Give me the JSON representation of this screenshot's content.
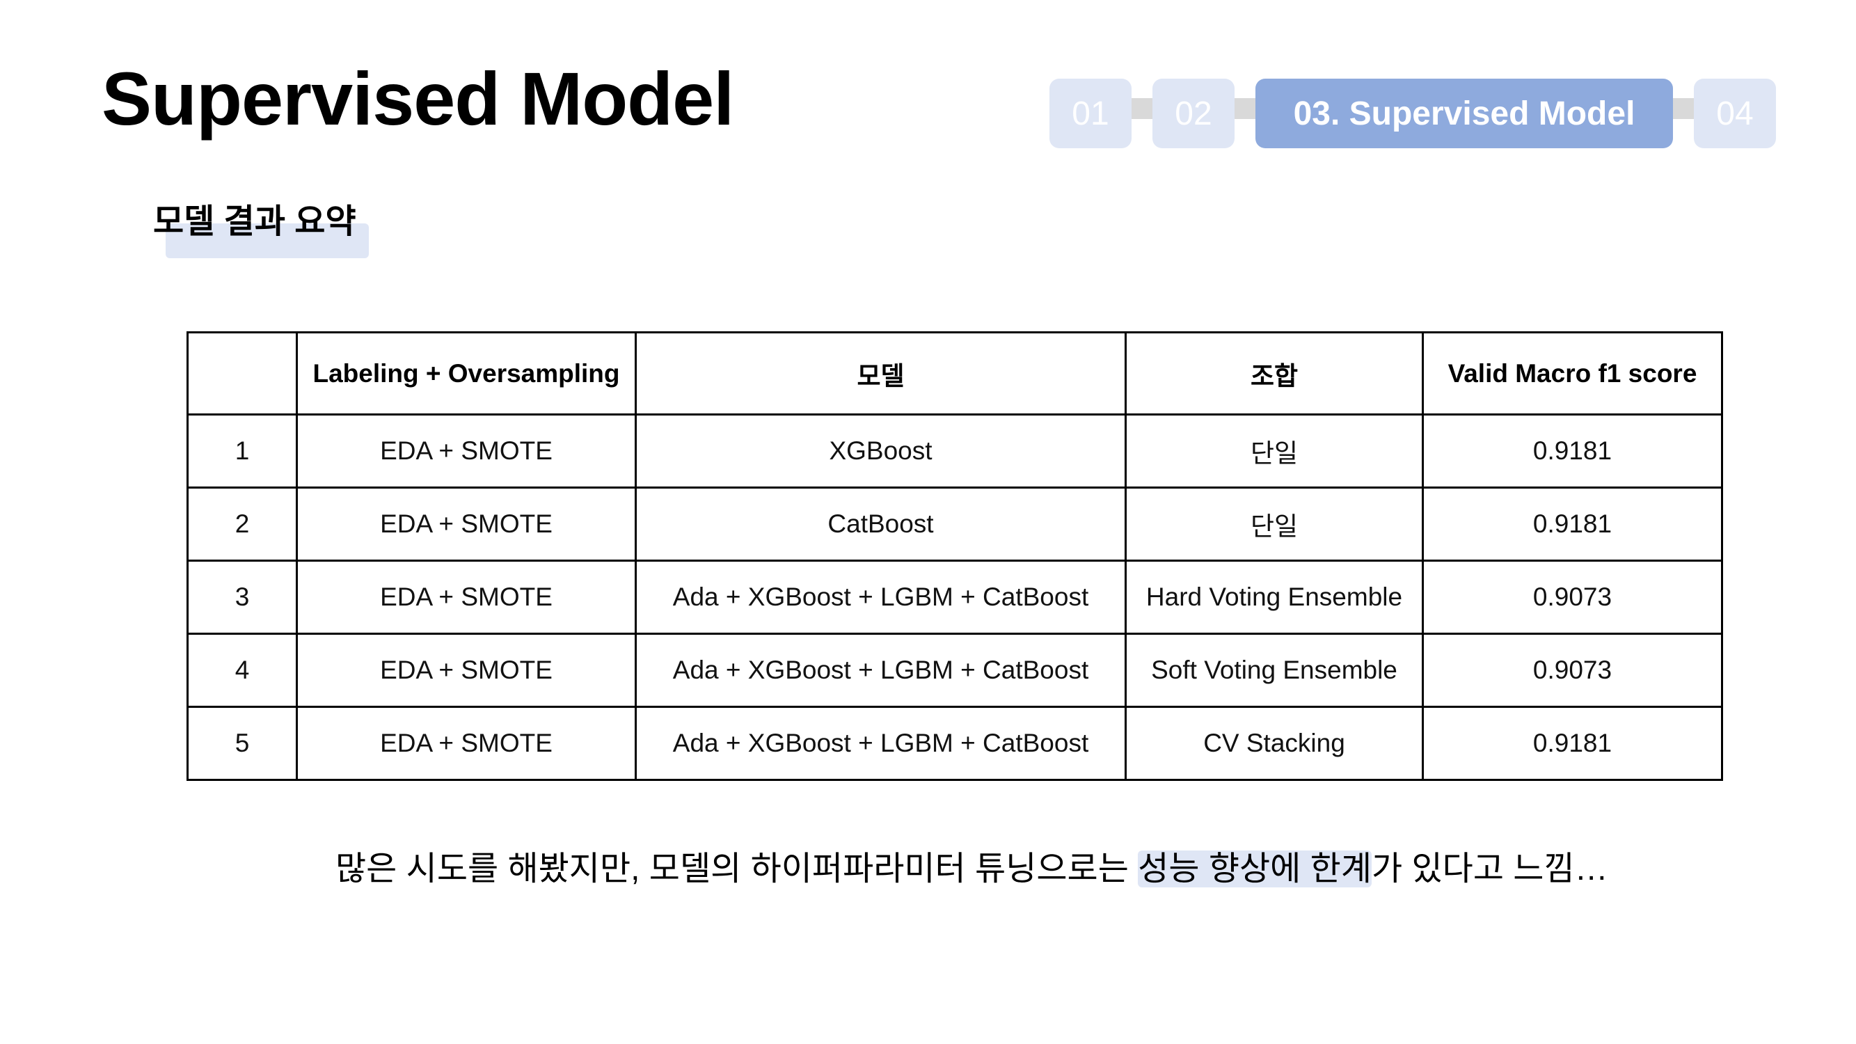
{
  "title": "Supervised Model",
  "nav": {
    "steps": [
      {
        "label": "01"
      },
      {
        "label": "02"
      },
      {
        "label": "03. Supervised Model"
      },
      {
        "label": "04"
      }
    ],
    "active_color": "#8eaadd",
    "inactive_color": "#dfe6f5"
  },
  "subtitle": "모델 결과 요약",
  "table": {
    "headers": [
      "",
      "Labeling + Oversampling",
      "모델",
      "조합",
      "Valid Macro f1 score"
    ],
    "rows": [
      [
        "1",
        "EDA + SMOTE",
        "XGBoost",
        "단일",
        "0.9181"
      ],
      [
        "2",
        "EDA + SMOTE",
        "CatBoost",
        "단일",
        "0.9181"
      ],
      [
        "3",
        "EDA + SMOTE",
        "Ada + XGBoost + LGBM + CatBoost",
        "Hard Voting Ensemble",
        "0.9073"
      ],
      [
        "4",
        "EDA + SMOTE",
        "Ada + XGBoost + LGBM + CatBoost",
        "Soft Voting Ensemble",
        "0.9073"
      ],
      [
        "5",
        "EDA + SMOTE",
        "Ada + XGBoost + LGBM + CatBoost",
        "CV Stacking",
        "0.9181"
      ]
    ]
  },
  "note": {
    "before": "많은 시도를 해봤지만, 모델의 하이퍼파라미터 튜닝으로는 ",
    "highlight": "성능 향상에 한계",
    "after": "가 있다고 느낌…"
  }
}
